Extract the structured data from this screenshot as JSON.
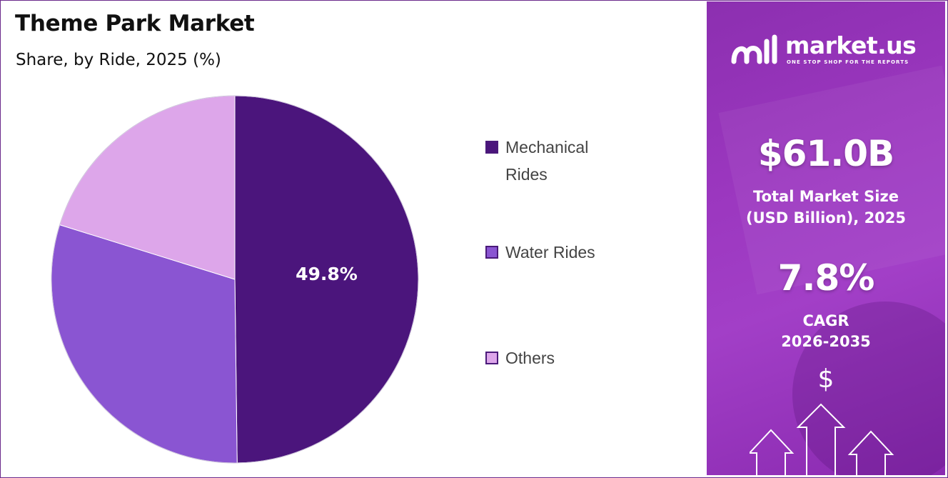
{
  "chart": {
    "title": "Theme Park Market",
    "subtitle": "Share, by Ride, 2025 (%)"
  },
  "chart_data": {
    "type": "pie",
    "title": "Theme Park Market",
    "subtitle": "Share, by Ride, 2025 (%)",
    "categories": [
      "Mechanical Rides",
      "Water Rides",
      "Others"
    ],
    "values": [
      49.8,
      30.0,
      20.2
    ],
    "data_labels": [
      "49.8%",
      "",
      ""
    ],
    "colors": [
      "#4b157c",
      "#8a55d2",
      "#dda6ea"
    ],
    "legend_position": "right"
  },
  "legend": {
    "items": [
      {
        "label": "Mechanical Rides",
        "color": "#4b157c"
      },
      {
        "label": "Water Rides",
        "color": "#8a55d2"
      },
      {
        "label": "Others",
        "color": "#dda6ea"
      }
    ]
  },
  "sidebar": {
    "brand_name": "market.us",
    "brand_tagline": "ONE STOP SHOP FOR THE REPORTS",
    "market_size_value": "$61.0B",
    "market_size_label_line1": "Total Market Size",
    "market_size_label_line2": "(USD Billion), 2025",
    "cagr_value": "7.8%",
    "cagr_label_line1": "CAGR",
    "cagr_label_line2": "2026-2035",
    "dollar_symbol": "$",
    "accent_color": "#9b37bf"
  }
}
